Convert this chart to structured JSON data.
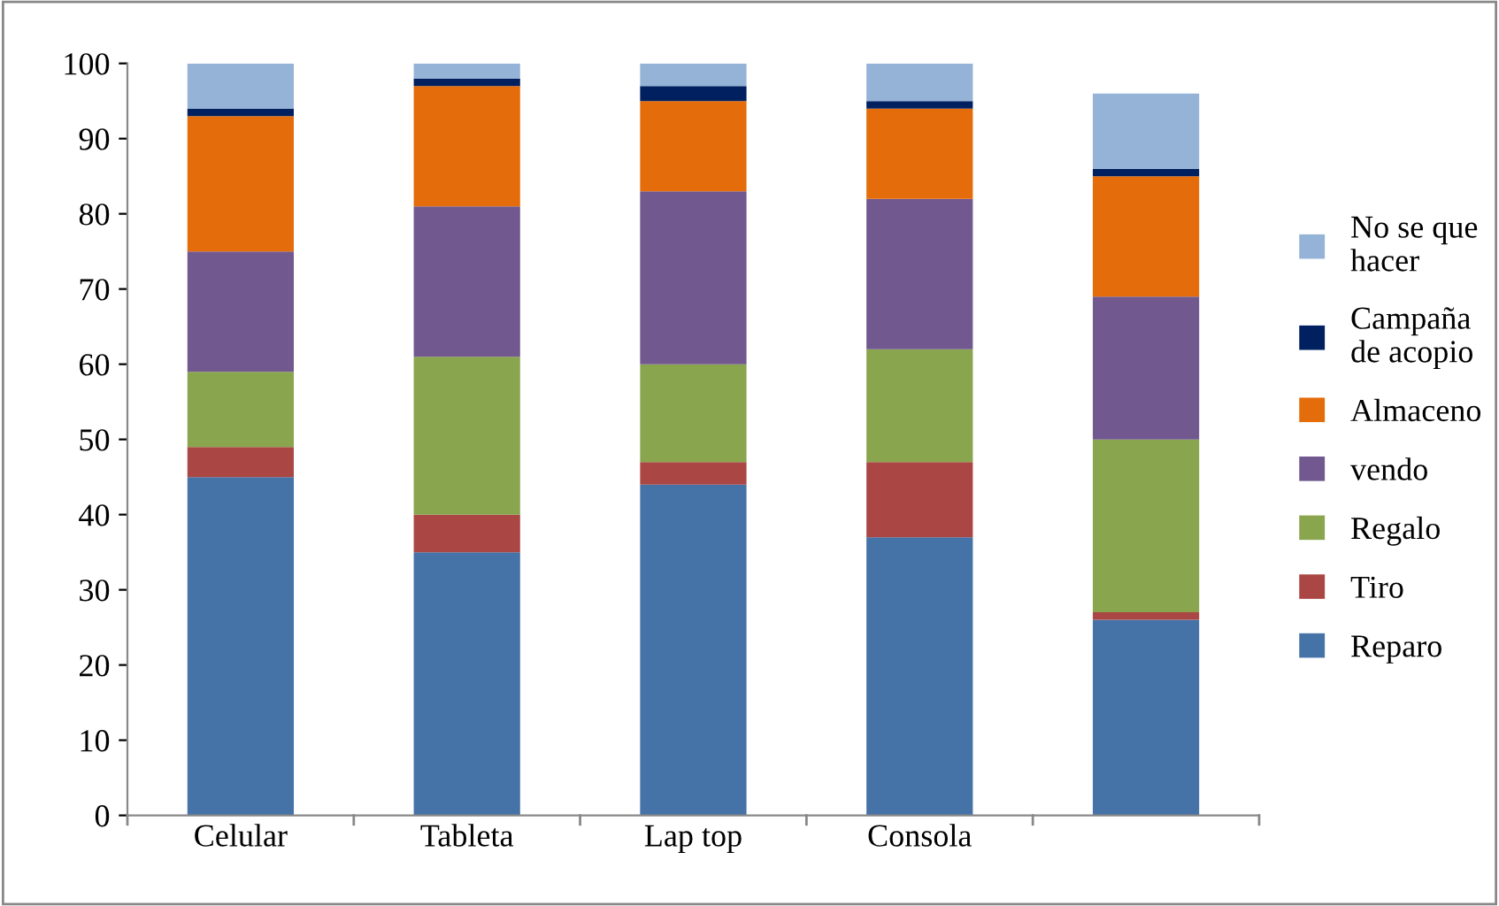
{
  "chart_data": {
    "type": "bar",
    "stacked": true,
    "categories": [
      "Celular",
      "Tableta",
      "Lap top",
      "Consola",
      null
    ],
    "series": [
      {
        "name": "Reparo",
        "color": "#4572a7",
        "values": [
          45,
          35,
          44,
          37,
          26
        ]
      },
      {
        "name": "Tiro",
        "color": "#aa4643",
        "values": [
          4,
          5,
          3,
          10,
          1
        ]
      },
      {
        "name": "Regalo",
        "color": "#89a54e",
        "values": [
          10,
          21,
          13,
          15,
          23
        ]
      },
      {
        "name": "vendo",
        "color": "#71588f",
        "values": [
          16,
          20,
          23,
          20,
          19
        ]
      },
      {
        "name": "Almaceno",
        "color": "#e46c0a",
        "values": [
          18,
          16,
          12,
          12,
          16
        ]
      },
      {
        "name": "Campaña\nde acopio",
        "color": "#002060",
        "values": [
          1,
          1,
          2,
          1,
          1
        ]
      },
      {
        "name": "No se que\nhacer",
        "color": "#95b3d7",
        "values": [
          6,
          2,
          3,
          5,
          10
        ]
      }
    ],
    "ylim": [
      0,
      100
    ],
    "yticks": [
      0,
      10,
      20,
      30,
      40,
      50,
      60,
      70,
      80,
      90,
      100
    ],
    "grid": false,
    "legend": "right"
  }
}
